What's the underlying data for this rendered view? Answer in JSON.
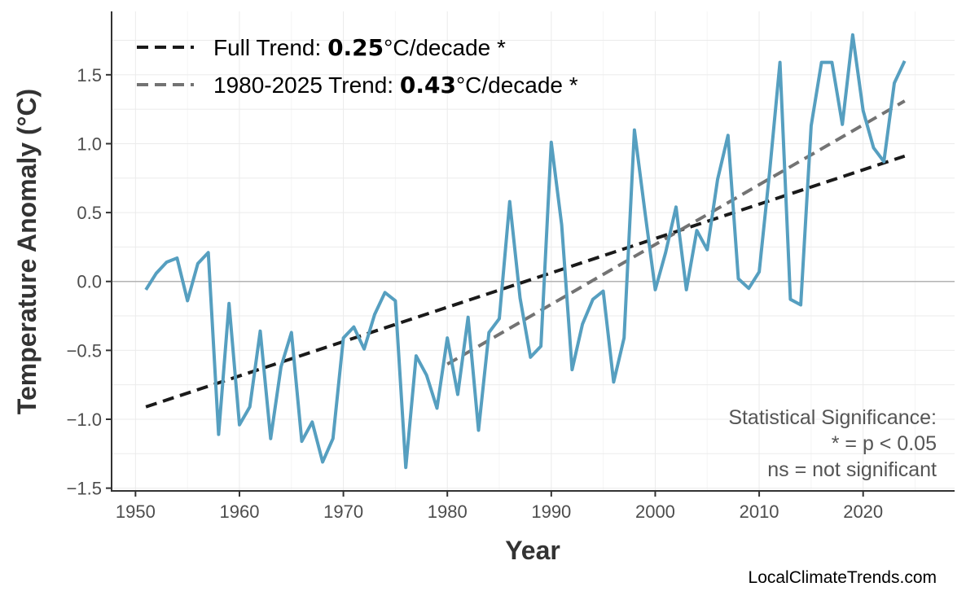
{
  "chart_data": {
    "type": "line",
    "title": "",
    "xlabel": "Year",
    "ylabel": "Temperature Anomaly (°C)",
    "xlim": [
      1947.7,
      2028.8
    ],
    "ylim": [
      -1.52,
      1.96
    ],
    "xticks": [
      1950,
      1960,
      1970,
      1980,
      1990,
      2000,
      2010,
      2020
    ],
    "yticks": [
      -1.5,
      -1.0,
      -0.5,
      0.0,
      0.5,
      1.0,
      1.5
    ],
    "ytick_labels": [
      "−1.5",
      "−1.0",
      "−0.5",
      "0.0",
      "0.5",
      "1.0",
      "1.5"
    ],
    "grid": true,
    "zero_line": true,
    "series": [
      {
        "color": "#569fc0",
        "x": [
          1951,
          1952,
          1953,
          1954,
          1955,
          1956,
          1957,
          1958,
          1959,
          1960,
          1961,
          1962,
          1963,
          1964,
          1965,
          1966,
          1967,
          1968,
          1969,
          1970,
          1971,
          1972,
          1973,
          1974,
          1975,
          1976,
          1977,
          1978,
          1979,
          1980,
          1981,
          1982,
          1983,
          1984,
          1985,
          1986,
          1987,
          1988,
          1989,
          1990,
          1991,
          1992,
          1993,
          1994,
          1995,
          1996,
          1997,
          1998,
          1999,
          2000,
          2001,
          2002,
          2003,
          2004,
          2005,
          2006,
          2007,
          2008,
          2009,
          2010,
          2011,
          2012,
          2013,
          2014,
          2015,
          2016,
          2017,
          2018,
          2019,
          2020,
          2021,
          2022,
          2023,
          2024
        ],
        "y": [
          -0.06,
          0.06,
          0.14,
          0.17,
          -0.14,
          0.13,
          0.21,
          -1.11,
          -0.16,
          -1.04,
          -0.91,
          -0.36,
          -1.14,
          -0.62,
          -0.37,
          -1.16,
          -1.02,
          -1.31,
          -1.14,
          -0.41,
          -0.33,
          -0.49,
          -0.24,
          -0.08,
          -0.14,
          -1.35,
          -0.54,
          -0.68,
          -0.92,
          -0.41,
          -0.82,
          -0.26,
          -1.08,
          -0.37,
          -0.27,
          0.58,
          -0.12,
          -0.55,
          -0.47,
          1.01,
          0.41,
          -0.64,
          -0.31,
          -0.13,
          -0.07,
          -0.73,
          -0.41,
          1.1,
          0.51,
          -0.06,
          0.21,
          0.54,
          -0.06,
          0.37,
          0.23,
          0.74,
          1.06,
          0.02,
          -0.05,
          0.07,
          0.79,
          1.59,
          -0.13,
          -0.17,
          1.13,
          1.59,
          1.59,
          1.14,
          1.79,
          1.24,
          0.97,
          0.87,
          1.44,
          1.6
        ]
      }
    ],
    "trends": [
      {
        "label_prefix": "Full Trend: ",
        "value": "0.25",
        "label_suffix": "°C/decade *",
        "color": "#1a1a1a",
        "x": [
          1951,
          2024
        ],
        "y": [
          -0.91,
          0.91
        ]
      },
      {
        "label_prefix": "1980-2025 Trend: ",
        "value": "0.43",
        "label_suffix": "°C/decade *",
        "color": "#737373",
        "x": [
          1980,
          2024
        ],
        "y": [
          -0.6,
          1.31
        ]
      }
    ],
    "legend_position": "top-left",
    "annotation": [
      "Statistical Significance:",
      "* = p < 0.05",
      "ns = not significant"
    ],
    "source": "LocalClimateTrends.com"
  }
}
